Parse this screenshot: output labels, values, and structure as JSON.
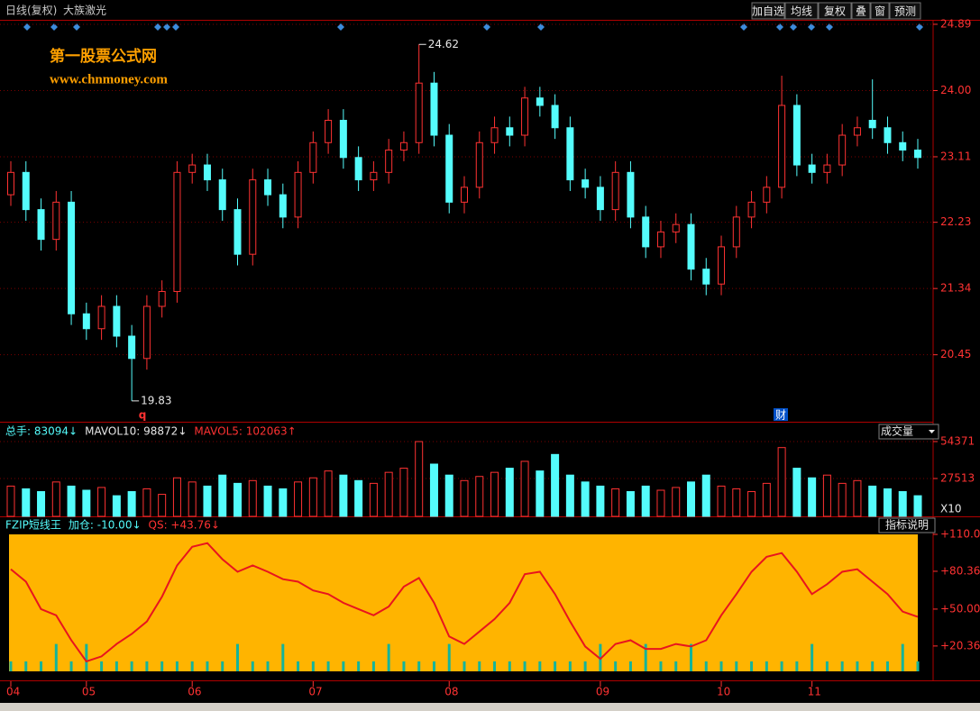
{
  "toolbar": [
    "加自选",
    "均线",
    "复权",
    "叠",
    "窗",
    "预测"
  ],
  "chart_data": [
    {
      "type": "candlestick",
      "title": "日线(复权)",
      "subtitle": "大族激光",
      "watermark": [
        "第一股票公式网",
        "www.chnmoney.com"
      ],
      "annotations": [
        "q",
        "财"
      ],
      "up_color": "#ff3232",
      "down_color": "#54fcfc",
      "grid": true,
      "ylim": [
        19.55,
        24.95
      ],
      "yticks": [
        24.89,
        {
          "value": 24,
          "label": "24.00"
        },
        23.11,
        22.23,
        21.34,
        20.45
      ],
      "open": [
        22.6,
        22.9,
        22.4,
        22.0,
        22.5,
        21.0,
        20.8,
        21.1,
        20.7,
        20.4,
        21.1,
        21.3,
        22.9,
        23.0,
        22.8,
        22.4,
        21.8,
        22.8,
        22.6,
        22.3,
        22.9,
        23.3,
        23.6,
        23.1,
        22.8,
        22.9,
        23.2,
        23.3,
        24.1,
        23.4,
        22.5,
        22.7,
        23.3,
        23.5,
        23.4,
        23.9,
        23.8,
        23.5,
        22.8,
        22.7,
        22.4,
        22.9,
        22.3,
        21.9,
        22.1,
        22.2,
        21.6,
        21.4,
        21.9,
        22.3,
        22.5,
        22.7,
        23.8,
        23.0,
        22.9,
        23.0,
        23.4,
        23.6,
        23.5,
        23.3,
        23.2
      ],
      "high": [
        23.05,
        23.05,
        22.55,
        22.65,
        22.65,
        21.15,
        21.25,
        21.25,
        20.85,
        21.25,
        21.45,
        23.05,
        23.15,
        23.15,
        22.95,
        22.55,
        22.95,
        22.95,
        22.75,
        23.05,
        23.45,
        23.75,
        23.75,
        23.25,
        23.05,
        23.35,
        23.45,
        24.62,
        24.25,
        23.55,
        22.85,
        23.45,
        23.65,
        23.65,
        24.05,
        24.05,
        23.95,
        23.65,
        22.95,
        22.85,
        23.05,
        23.05,
        22.45,
        22.25,
        22.35,
        22.35,
        21.75,
        22.05,
        22.45,
        22.65,
        22.85,
        24.2,
        23.95,
        23.15,
        23.15,
        23.55,
        23.65,
        24.15,
        23.65,
        23.45,
        23.35
      ],
      "low": [
        22.45,
        22.25,
        21.85,
        21.85,
        20.85,
        20.65,
        20.65,
        20.55,
        19.83,
        20.25,
        20.95,
        21.15,
        22.75,
        22.65,
        22.25,
        21.65,
        21.65,
        22.45,
        22.15,
        22.15,
        22.75,
        23.15,
        22.95,
        22.65,
        22.65,
        22.75,
        23.05,
        23.15,
        23.25,
        22.35,
        22.35,
        22.55,
        23.15,
        23.25,
        23.25,
        23.65,
        23.35,
        22.65,
        22.55,
        22.25,
        22.25,
        22.15,
        21.75,
        21.75,
        21.95,
        21.45,
        21.25,
        21.25,
        21.75,
        22.15,
        22.35,
        22.55,
        22.85,
        22.75,
        22.75,
        22.85,
        23.25,
        23.35,
        23.15,
        23.05,
        22.95
      ],
      "close": [
        22.9,
        22.4,
        22.0,
        22.5,
        21.0,
        20.8,
        21.1,
        20.7,
        20.4,
        21.1,
        21.3,
        22.9,
        23.0,
        22.8,
        22.4,
        21.8,
        22.8,
        22.6,
        22.3,
        22.9,
        23.3,
        23.6,
        23.1,
        22.8,
        22.9,
        23.2,
        23.3,
        24.1,
        23.4,
        22.5,
        22.7,
        23.3,
        23.5,
        23.4,
        23.9,
        23.8,
        23.5,
        22.8,
        22.7,
        22.4,
        22.9,
        22.3,
        21.9,
        22.1,
        22.2,
        21.6,
        21.4,
        21.9,
        22.3,
        22.5,
        22.7,
        23.8,
        23.0,
        22.9,
        23.0,
        23.4,
        23.5,
        23.5,
        23.3,
        23.2,
        23.1
      ]
    },
    {
      "type": "bar",
      "header": [
        {
          "text": "总手: 83094↓",
          "color": "#54fcfc"
        },
        {
          "text": "MAVOL10: 98872↓",
          "color": "#e8e8e8"
        },
        {
          "text": "MAVOL5: 102063↑",
          "color": "#ff3232"
        }
      ],
      "selector": "成交量",
      "unit": "X10",
      "up_color": "#ff3232",
      "down_color": "#54fcfc",
      "grid": true,
      "ylim": [
        0,
        57000
      ],
      "yticks": [
        54371,
        27513
      ],
      "values": [
        22000,
        20000,
        18000,
        25000,
        22000,
        19000,
        21000,
        15000,
        18000,
        20000,
        16000,
        28000,
        25000,
        22000,
        30000,
        24000,
        26000,
        22000,
        20000,
        25000,
        28000,
        33000,
        30000,
        26000,
        24000,
        32000,
        35000,
        54371,
        38000,
        30000,
        26000,
        29000,
        32000,
        35000,
        40000,
        33000,
        45000,
        30000,
        25000,
        22000,
        20000,
        18000,
        22000,
        19000,
        21000,
        25000,
        30000,
        22000,
        20000,
        18000,
        24000,
        50000,
        35000,
        28000,
        30000,
        24000,
        26000,
        22000,
        20000,
        18000,
        15000
      ]
    },
    {
      "type": "line",
      "header": [
        {
          "text": "FZIP短线王",
          "color": "#54fcfc"
        },
        {
          "text": "加仓: -10.00↓",
          "color": "#54fcfc"
        },
        {
          "text": "QS: +43.76↓",
          "color": "#ff3232"
        }
      ],
      "button": "指标说明",
      "background": "#ffb400",
      "ylim": [
        0,
        110
      ],
      "yticks": [
        {
          "value": 110,
          "label": "+110.0"
        },
        {
          "value": 80.36,
          "label": "+80.36"
        },
        {
          "value": 50,
          "label": "+50.00"
        },
        {
          "value": 20.36,
          "label": "+20.36"
        }
      ],
      "categories": [
        "04",
        null,
        null,
        null,
        null,
        "05",
        null,
        null,
        null,
        null,
        null,
        null,
        "06",
        null,
        null,
        null,
        null,
        null,
        null,
        null,
        "07",
        null,
        null,
        null,
        null,
        null,
        null,
        null,
        null,
        "08",
        null,
        null,
        null,
        null,
        null,
        null,
        null,
        null,
        null,
        "09",
        null,
        null,
        null,
        null,
        null,
        null,
        null,
        "10",
        null,
        null,
        null,
        null,
        null,
        "11",
        null,
        null,
        null,
        null,
        null,
        null,
        null
      ],
      "line": {
        "color": "#e8141e",
        "values": [
          82,
          72,
          50,
          45,
          25,
          8,
          12,
          22,
          30,
          40,
          60,
          85,
          100,
          103,
          90,
          80,
          85,
          80,
          74,
          72,
          65,
          62,
          55,
          50,
          45,
          52,
          68,
          75,
          55,
          28,
          22,
          32,
          42,
          55,
          78,
          80,
          62,
          40,
          20,
          10,
          22,
          25,
          18,
          18,
          22,
          20,
          25,
          45,
          62,
          80,
          92,
          95,
          80,
          62,
          70,
          80,
          82,
          72,
          62,
          48,
          43.76
        ]
      },
      "bars": {
        "color": "#14b49a",
        "values": [
          8,
          8,
          8,
          22,
          8,
          22,
          8,
          8,
          8,
          8,
          8,
          8,
          8,
          8,
          8,
          22,
          8,
          8,
          22,
          8,
          8,
          8,
          8,
          8,
          8,
          22,
          8,
          8,
          8,
          22,
          8,
          8,
          8,
          8,
          8,
          8,
          8,
          8,
          8,
          22,
          8,
          8,
          22,
          8,
          8,
          22,
          8,
          8,
          8,
          8,
          8,
          8,
          8,
          22,
          8,
          8,
          8,
          8,
          8,
          22,
          8
        ]
      }
    }
  ]
}
